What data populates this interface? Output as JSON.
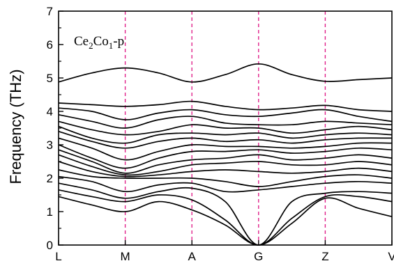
{
  "chart_data": {
    "type": "line",
    "title": "",
    "annotation": {
      "main1": "Ce",
      "sub1": "2",
      "main2": "Co",
      "sub2": "1",
      "tail": "-p"
    },
    "ylabel": "Frequency (THz)",
    "xlabel": "",
    "ylim": [
      0,
      7
    ],
    "yticks": [
      0,
      1,
      2,
      3,
      4,
      5,
      6,
      7
    ],
    "grid": false,
    "high_symmetry_points": [
      {
        "label": "L",
        "x": 0
      },
      {
        "label": "M",
        "x": 1
      },
      {
        "label": "A",
        "x": 2
      },
      {
        "label": "G",
        "x": 3
      },
      {
        "label": "Z",
        "x": 4
      },
      {
        "label": "V",
        "x": 5
      }
    ],
    "xlim": [
      0,
      5
    ],
    "colors": {
      "bands": "#000000",
      "symmetry_lines": "#e0218a"
    },
    "series": [
      {
        "x": [
          0,
          0.5,
          1,
          1.5,
          2,
          2.5,
          3,
          3.5,
          4,
          4.5,
          5
        ],
        "values": [
          4.88,
          5.15,
          5.3,
          5.15,
          4.88,
          5.1,
          5.42,
          5.1,
          4.9,
          4.95,
          5.0
        ]
      },
      {
        "x": [
          0,
          0.5,
          1,
          1.5,
          2,
          2.5,
          3,
          3.5,
          4,
          4.5,
          5
        ],
        "values": [
          4.25,
          4.2,
          4.15,
          4.2,
          4.3,
          4.15,
          4.05,
          4.1,
          4.18,
          4.05,
          4.0
        ]
      },
      {
        "x": [
          0,
          0.5,
          1,
          1.5,
          2,
          2.5,
          3,
          3.5,
          4,
          4.5,
          5
        ],
        "values": [
          4.1,
          4.0,
          3.75,
          3.95,
          4.05,
          3.9,
          3.85,
          3.95,
          4.05,
          3.85,
          3.7
        ]
      },
      {
        "x": [
          0,
          0.5,
          1,
          1.5,
          2,
          2.5,
          3,
          3.5,
          4,
          4.5,
          5
        ],
        "values": [
          3.9,
          3.7,
          3.5,
          3.75,
          3.85,
          3.65,
          3.6,
          3.6,
          3.7,
          3.65,
          3.6
        ]
      },
      {
        "x": [
          0,
          0.5,
          1,
          1.5,
          2,
          2.5,
          3,
          3.5,
          4,
          4.5,
          5
        ],
        "values": [
          3.7,
          3.45,
          3.3,
          3.4,
          3.6,
          3.5,
          3.5,
          3.35,
          3.45,
          3.55,
          3.45
        ]
      },
      {
        "x": [
          0,
          0.5,
          1,
          1.5,
          2,
          2.5,
          3,
          3.5,
          4,
          4.5,
          5
        ],
        "values": [
          3.55,
          3.2,
          3.05,
          3.3,
          3.35,
          3.3,
          3.35,
          3.2,
          3.3,
          3.35,
          3.3
        ]
      },
      {
        "x": [
          0,
          0.5,
          1,
          1.5,
          2,
          2.5,
          3,
          3.5,
          4,
          4.5,
          5
        ],
        "values": [
          3.4,
          3.1,
          2.9,
          3.1,
          3.2,
          3.1,
          3.15,
          3.05,
          3.15,
          3.2,
          3.2
        ]
      },
      {
        "x": [
          0,
          0.5,
          1,
          1.5,
          2,
          2.5,
          3,
          3.5,
          4,
          4.5,
          5
        ],
        "values": [
          3.2,
          2.9,
          2.55,
          2.8,
          3.0,
          2.95,
          2.95,
          2.9,
          2.95,
          3.05,
          3.05
        ]
      },
      {
        "x": [
          0,
          0.5,
          1,
          1.5,
          2,
          2.5,
          3,
          3.5,
          4,
          4.5,
          5
        ],
        "values": [
          3.0,
          2.6,
          2.3,
          2.6,
          2.8,
          2.8,
          2.85,
          2.75,
          2.8,
          2.9,
          2.85
        ]
      },
      {
        "x": [
          0,
          0.5,
          1,
          1.5,
          2,
          2.5,
          3,
          3.5,
          4,
          4.5,
          5
        ],
        "values": [
          2.85,
          2.5,
          2.15,
          2.4,
          2.55,
          2.6,
          2.7,
          2.55,
          2.6,
          2.7,
          2.6
        ]
      },
      {
        "x": [
          0,
          0.5,
          1,
          1.5,
          2,
          2.5,
          3,
          3.5,
          4,
          4.5,
          5
        ],
        "values": [
          2.7,
          2.35,
          2.1,
          2.2,
          2.4,
          2.45,
          2.5,
          2.4,
          2.4,
          2.5,
          2.4
        ]
      },
      {
        "x": [
          0,
          0.5,
          1,
          1.5,
          2,
          2.5,
          3,
          3.5,
          4,
          4.5,
          5
        ],
        "values": [
          2.5,
          2.2,
          2.05,
          2.1,
          2.2,
          2.25,
          2.2,
          2.15,
          2.2,
          2.3,
          2.2
        ]
      },
      {
        "x": [
          0,
          0.5,
          1,
          1.5,
          2,
          2.5,
          3,
          3.5,
          4,
          4.5,
          5
        ],
        "values": [
          2.25,
          2.05,
          2.0,
          2.0,
          2.0,
          1.9,
          1.75,
          1.9,
          2.05,
          2.1,
          2.0
        ]
      },
      {
        "x": [
          0,
          0.5,
          1,
          1.5,
          2,
          2.5,
          3,
          3.5,
          4,
          4.5,
          5
        ],
        "values": [
          2.05,
          1.9,
          1.6,
          1.8,
          1.85,
          1.6,
          1.65,
          1.75,
          1.85,
          1.9,
          1.85
        ]
      },
      {
        "x": [
          0,
          0.5,
          1,
          1.5,
          2,
          2.5,
          3,
          3.5,
          4,
          4.5,
          5
        ],
        "values": [
          1.85,
          1.65,
          1.4,
          1.6,
          1.7,
          1.3,
          0.0,
          1.3,
          1.55,
          1.6,
          1.55
        ]
      },
      {
        "x": [
          0,
          0.5,
          1,
          1.5,
          2,
          2.5,
          3,
          3.5,
          4,
          4.5,
          5
        ],
        "values": [
          1.65,
          1.45,
          1.3,
          1.5,
          1.35,
          0.75,
          0.0,
          0.8,
          1.45,
          1.45,
          1.3
        ]
      },
      {
        "x": [
          0,
          0.5,
          1,
          1.5,
          2,
          2.5,
          3,
          3.5,
          4,
          4.5,
          5
        ],
        "values": [
          1.45,
          1.2,
          1.0,
          1.3,
          1.05,
          0.6,
          0.0,
          0.65,
          1.4,
          1.1,
          0.85
        ]
      }
    ]
  }
}
